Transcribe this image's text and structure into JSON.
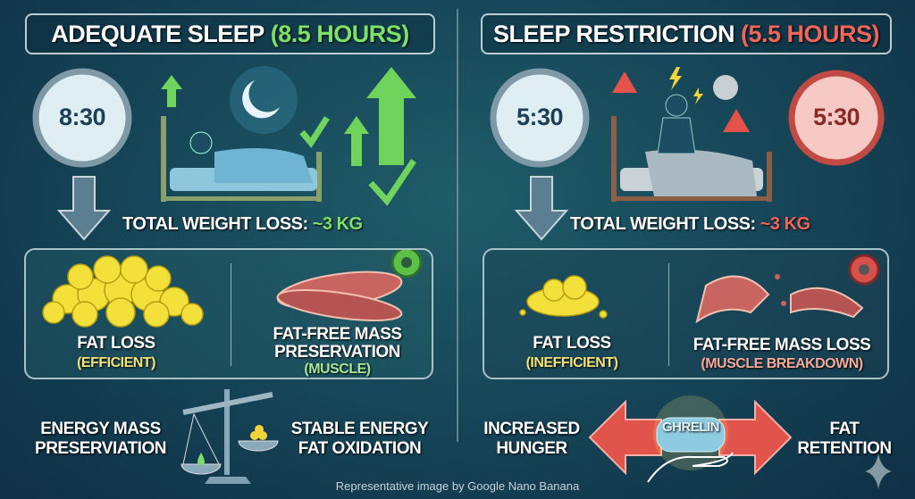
{
  "left": {
    "title": "Adequate Sleep",
    "title_highlight": "(8.5 Hours)",
    "clock_time": "8:30",
    "weight_loss_label": "Total Weight Loss:",
    "weight_loss_value": "~3 KG",
    "fat_label": "Fat Loss",
    "fat_sub": "(Efficient)",
    "muscle_label_1": "Fat-Free Mass",
    "muscle_label_2": "Preservation",
    "muscle_sub": "(Muscle)",
    "bottom_left_1": "Energy Mass",
    "bottom_left_2": "Preserviation",
    "bottom_right_1": "Stable Energy",
    "bottom_right_2": "Fat Oxidation"
  },
  "right": {
    "title": "Sleep Restriction",
    "title_highlight": "(5.5 Hours)",
    "clock_time": "5:30",
    "clock_time_red": "5:30",
    "weight_loss_label": "Total Weight Loss:",
    "weight_loss_value": "~3 KG",
    "fat_label": "Fat Loss",
    "fat_sub": "(Inefficient)",
    "muscle_label": "Fat-Free Mass Loss",
    "muscle_sub": "(Muscle Breakdown)",
    "hunger_1": "Increased",
    "hunger_2": "Hunger",
    "hormone": "Ghrelin",
    "retention_1": "Fat",
    "retention_2": "Retention"
  },
  "footer": "Representative image by Google Nano Banana",
  "colors": {
    "green": "#7ee06a",
    "red": "#f0665a",
    "yellow": "#f3e27a",
    "pink": "#f4a99a",
    "light_green": "#a8e59a"
  }
}
